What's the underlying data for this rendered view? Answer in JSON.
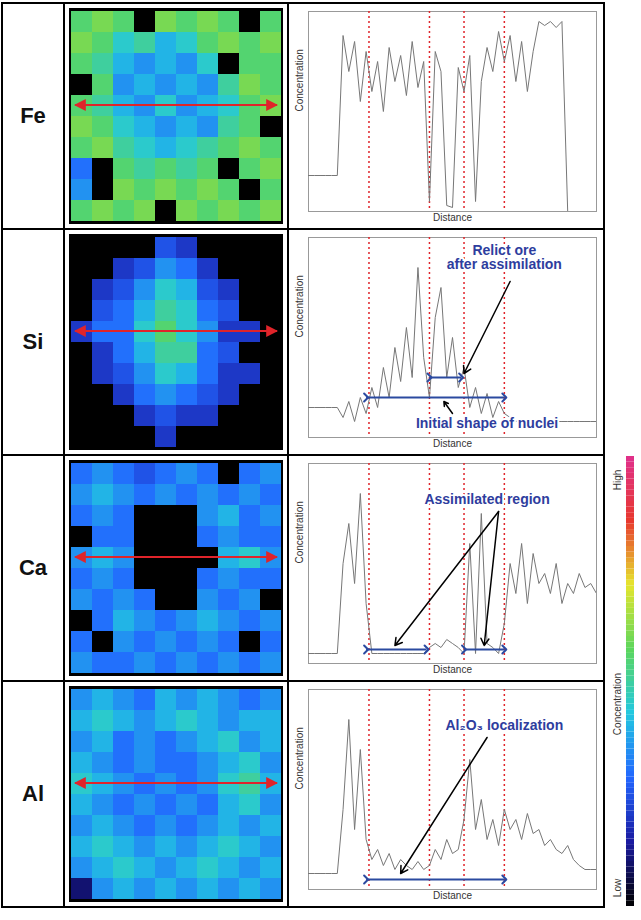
{
  "chart_data": [
    {
      "type": "line",
      "title": "Fe",
      "x_label": "Distance",
      "y_label": "Concentration",
      "xlim": [
        0,
        100
      ],
      "ylim": [
        0,
        100
      ],
      "tick_labels": false,
      "x": [
        0,
        2,
        4,
        6,
        8,
        10,
        12,
        14,
        16,
        18,
        20,
        22,
        24,
        26,
        28,
        30,
        32,
        34,
        36,
        38,
        40,
        42,
        44,
        46,
        48,
        50,
        52,
        54,
        56,
        58,
        60,
        62,
        64,
        66,
        68,
        70,
        72,
        74,
        76,
        78,
        80,
        82,
        84,
        86,
        88,
        90,
        92,
        94,
        96,
        98,
        100
      ],
      "series": [
        {
          "color": "#777777",
          "values": [
            18,
            18,
            18,
            18,
            18,
            18,
            88,
            70,
            85,
            55,
            80,
            60,
            75,
            50,
            82,
            65,
            78,
            58,
            85,
            62,
            75,
            5,
            80,
            70,
            3,
            2,
            72,
            60,
            78,
            5,
            65,
            82,
            70,
            90,
            75,
            88,
            65,
            85,
            60,
            80,
            95,
            93,
            95,
            92,
            95,
            0,
            0,
            0,
            0,
            0,
            0
          ]
        }
      ],
      "reference_lines": {
        "x": [
          21,
          42,
          54,
          68
        ],
        "color": "#e0242a",
        "line_style": "dotted"
      },
      "map": {
        "cells": [
          [
            0.55,
            0.6,
            0.55,
            0.0,
            0.6,
            0.55,
            0.6,
            0.55,
            0.0,
            0.55
          ],
          [
            0.6,
            0.55,
            0.45,
            0.5,
            0.4,
            0.45,
            0.55,
            0.6,
            0.55,
            0.6
          ],
          [
            0.55,
            0.5,
            0.4,
            0.35,
            0.4,
            0.35,
            0.45,
            0.0,
            0.55,
            0.55
          ],
          [
            0.0,
            0.55,
            0.35,
            0.4,
            0.35,
            0.4,
            0.35,
            0.5,
            0.6,
            0.55
          ],
          [
            0.55,
            0.5,
            0.4,
            0.35,
            0.45,
            0.35,
            0.4,
            0.45,
            0.55,
            0.6
          ],
          [
            0.6,
            0.55,
            0.45,
            0.4,
            0.35,
            0.4,
            0.35,
            0.5,
            0.55,
            0.0
          ],
          [
            0.55,
            0.6,
            0.5,
            0.45,
            0.4,
            0.45,
            0.5,
            0.55,
            0.6,
            0.55
          ],
          [
            0.3,
            0.0,
            0.55,
            0.5,
            0.55,
            0.5,
            0.55,
            0.0,
            0.55,
            0.6
          ],
          [
            0.35,
            0.0,
            0.6,
            0.55,
            0.6,
            0.55,
            0.6,
            0.55,
            0.0,
            0.55
          ],
          [
            0.55,
            0.6,
            0.55,
            0.6,
            0.0,
            0.6,
            0.55,
            0.6,
            0.55,
            0.6
          ]
        ]
      }
    },
    {
      "type": "line",
      "title": "Si",
      "x_label": "Distance",
      "y_label": "Concentration",
      "xlim": [
        0,
        100
      ],
      "ylim": [
        0,
        100
      ],
      "tick_labels": false,
      "x": [
        0,
        2,
        4,
        6,
        8,
        10,
        12,
        14,
        16,
        18,
        20,
        22,
        24,
        26,
        28,
        30,
        32,
        34,
        36,
        38,
        40,
        42,
        44,
        46,
        48,
        50,
        52,
        54,
        56,
        58,
        60,
        62,
        64,
        66,
        68,
        70,
        72,
        74,
        76,
        78,
        80,
        82,
        84,
        86,
        88,
        90,
        92,
        94,
        96,
        98,
        100
      ],
      "series": [
        {
          "color": "#777777",
          "values": [
            15,
            15,
            15,
            15,
            15,
            15,
            10,
            18,
            8,
            20,
            12,
            25,
            15,
            35,
            20,
            45,
            28,
            55,
            30,
            85,
            40,
            20,
            60,
            75,
            30,
            50,
            25,
            35,
            15,
            25,
            12,
            22,
            10,
            18,
            12,
            10,
            8,
            9,
            8,
            9,
            8,
            8,
            9,
            8,
            8,
            8,
            8,
            8,
            8,
            8,
            8
          ]
        }
      ],
      "reference_lines": {
        "x": [
          21,
          42,
          54,
          68
        ],
        "color": "#e0242a",
        "line_style": "dotted"
      },
      "spans": [
        {
          "x1": 42,
          "x2": 53,
          "y": 30,
          "color": "#2b4aa0"
        },
        {
          "x1": 20,
          "x2": 68,
          "y": 20,
          "color": "#2b4aa0"
        }
      ],
      "annotations": [
        {
          "text": "Relict ore\nafter assimilation",
          "x": 68,
          "y": 90,
          "color": "#2e3d9e",
          "arrow_from": [
            70,
            78
          ],
          "arrow_to": [
            [
              54,
              32
            ]
          ]
        },
        {
          "text": "Initial shape of nuclei",
          "x": 62,
          "y": 7,
          "color": "#2e3d9e",
          "arrow_from": [
            50,
            12
          ],
          "arrow_to": [
            [
              47,
              18
            ]
          ]
        }
      ],
      "map": {
        "cells": [
          [
            0,
            0,
            0,
            0,
            0.25,
            0.2,
            0,
            0,
            0,
            0
          ],
          [
            0,
            0,
            0.2,
            0.25,
            0.35,
            0.3,
            0.2,
            0,
            0,
            0
          ],
          [
            0,
            0.2,
            0.25,
            0.35,
            0.45,
            0.4,
            0.25,
            0.2,
            0,
            0
          ],
          [
            0,
            0.25,
            0.3,
            0.4,
            0.5,
            0.45,
            0.3,
            0.25,
            0,
            0
          ],
          [
            0.2,
            0.3,
            0.3,
            0.45,
            0.55,
            0.45,
            0.35,
            0.2,
            0.2,
            0
          ],
          [
            0,
            0.2,
            0.3,
            0.4,
            0.5,
            0.5,
            0.3,
            0.25,
            0,
            0
          ],
          [
            0,
            0.2,
            0.25,
            0.35,
            0.45,
            0.4,
            0.3,
            0.2,
            0.2,
            0
          ],
          [
            0,
            0,
            0.2,
            0.3,
            0.35,
            0.3,
            0.25,
            0.2,
            0,
            0
          ],
          [
            0,
            0,
            0,
            0.2,
            0.25,
            0.2,
            0.2,
            0,
            0,
            0
          ],
          [
            0,
            0,
            0,
            0,
            0.2,
            0,
            0,
            0,
            0,
            0
          ]
        ]
      }
    },
    {
      "type": "line",
      "title": "Ca",
      "x_label": "Distance",
      "y_label": "Concentration",
      "xlim": [
        0,
        100
      ],
      "ylim": [
        0,
        100
      ],
      "tick_labels": false,
      "x": [
        0,
        2,
        4,
        6,
        8,
        10,
        12,
        14,
        16,
        18,
        20,
        22,
        24,
        26,
        28,
        30,
        32,
        34,
        36,
        38,
        40,
        42,
        44,
        46,
        48,
        50,
        52,
        54,
        56,
        58,
        60,
        62,
        64,
        66,
        68,
        70,
        72,
        74,
        76,
        78,
        80,
        82,
        84,
        86,
        88,
        90,
        92,
        94,
        96,
        98,
        100
      ],
      "series": [
        {
          "color": "#777777",
          "values": [
            5,
            5,
            5,
            5,
            5,
            5,
            50,
            70,
            40,
            85,
            30,
            5,
            5,
            5,
            5,
            5,
            5,
            5,
            5,
            5,
            5,
            8,
            10,
            8,
            12,
            10,
            8,
            5,
            60,
            5,
            75,
            10,
            8,
            5,
            20,
            50,
            35,
            60,
            30,
            55,
            40,
            45,
            35,
            50,
            30,
            40,
            35,
            45,
            38,
            40,
            35
          ]
        }
      ],
      "reference_lines": {
        "x": [
          21,
          42,
          54,
          68
        ],
        "color": "#e0242a",
        "line_style": "dotted"
      },
      "spans": [
        {
          "x1": 20,
          "x2": 41,
          "y": 7,
          "color": "#2b4aa0"
        },
        {
          "x1": 54,
          "x2": 68,
          "y": 7,
          "color": "#2b4aa0"
        }
      ],
      "annotations": [
        {
          "text": "Assimilated region",
          "x": 62,
          "y": 82,
          "color": "#2e3d9e",
          "arrow_from": [
            66,
            76
          ],
          "arrow_to": [
            [
              30,
              9
            ],
            [
              61,
              9
            ]
          ]
        }
      ],
      "map": {
        "cells": [
          [
            0.3,
            0.35,
            0.3,
            0.25,
            0.3,
            0.35,
            0.3,
            0.0,
            0.3,
            0.35
          ],
          [
            0.35,
            0.4,
            0.35,
            0.3,
            0.35,
            0.3,
            0.35,
            0.3,
            0.35,
            0.3
          ],
          [
            0.3,
            0.35,
            0.3,
            0.0,
            0.0,
            0.0,
            0.35,
            0.4,
            0.3,
            0.35
          ],
          [
            0.0,
            0.3,
            0.3,
            0.0,
            0.0,
            0.0,
            0.3,
            0.35,
            0.3,
            0.3
          ],
          [
            0.35,
            0.4,
            0.35,
            0.0,
            0.0,
            0.0,
            0.0,
            0.4,
            0.45,
            0.35
          ],
          [
            0.3,
            0.35,
            0.3,
            0.0,
            0.0,
            0.0,
            0.3,
            0.35,
            0.3,
            0.3
          ],
          [
            0.35,
            0.3,
            0.35,
            0.3,
            0.0,
            0.0,
            0.35,
            0.3,
            0.35,
            0.0
          ],
          [
            0.0,
            0.3,
            0.4,
            0.35,
            0.3,
            0.35,
            0.4,
            0.35,
            0.3,
            0.35
          ],
          [
            0.3,
            0.0,
            0.35,
            0.3,
            0.35,
            0.3,
            0.35,
            0.3,
            0.0,
            0.3
          ],
          [
            0.35,
            0.3,
            0.3,
            0.35,
            0.3,
            0.35,
            0.3,
            0.35,
            0.3,
            0.35
          ]
        ]
      }
    },
    {
      "type": "line",
      "title": "Al",
      "x_label": "Distance",
      "y_label": "Concentration",
      "xlim": [
        0,
        100
      ],
      "ylim": [
        0,
        100
      ],
      "tick_labels": false,
      "x": [
        0,
        2,
        4,
        6,
        8,
        10,
        12,
        14,
        16,
        18,
        20,
        22,
        24,
        26,
        28,
        30,
        32,
        34,
        36,
        38,
        40,
        42,
        44,
        46,
        48,
        50,
        52,
        54,
        56,
        58,
        60,
        62,
        64,
        66,
        68,
        70,
        72,
        74,
        76,
        78,
        80,
        82,
        84,
        86,
        88,
        90,
        92,
        94,
        96,
        98,
        100
      ],
      "series": [
        {
          "color": "#777777",
          "values": [
            8,
            8,
            8,
            8,
            8,
            8,
            40,
            85,
            30,
            70,
            25,
            15,
            20,
            12,
            18,
            10,
            15,
            12,
            10,
            14,
            10,
            12,
            20,
            15,
            25,
            18,
            20,
            35,
            65,
            30,
            45,
            25,
            35,
            22,
            40,
            30,
            35,
            25,
            38,
            28,
            30,
            22,
            25,
            20,
            18,
            22,
            15,
            12,
            10,
            10,
            10
          ]
        }
      ],
      "reference_lines": {
        "x": [
          21,
          42,
          54,
          68
        ],
        "color": "#e0242a",
        "line_style": "dotted"
      },
      "spans": [
        {
          "x1": 20,
          "x2": 68,
          "y": 5,
          "color": "#2b4aa0"
        }
      ],
      "annotations": [
        {
          "text": "Al₂O₃ localization",
          "x": 68,
          "y": 82,
          "color": "#2e3d9e",
          "arrow_from": [
            62,
            76
          ],
          "arrow_to": [
            [
              32,
              8
            ]
          ]
        }
      ],
      "map": {
        "cells": [
          [
            0.35,
            0.4,
            0.35,
            0.3,
            0.4,
            0.35,
            0.4,
            0.35,
            0.3,
            0.35
          ],
          [
            0.4,
            0.45,
            0.4,
            0.35,
            0.4,
            0.45,
            0.4,
            0.35,
            0.4,
            0.4
          ],
          [
            0.35,
            0.4,
            0.3,
            0.35,
            0.3,
            0.35,
            0.4,
            0.45,
            0.35,
            0.4
          ],
          [
            0.4,
            0.35,
            0.3,
            0.35,
            0.3,
            0.3,
            0.35,
            0.4,
            0.45,
            0.35
          ],
          [
            0.45,
            0.4,
            0.35,
            0.3,
            0.35,
            0.3,
            0.35,
            0.45,
            0.5,
            0.4
          ],
          [
            0.4,
            0.35,
            0.3,
            0.35,
            0.3,
            0.35,
            0.3,
            0.4,
            0.45,
            0.35
          ],
          [
            0.35,
            0.4,
            0.35,
            0.3,
            0.35,
            0.3,
            0.35,
            0.4,
            0.35,
            0.4
          ],
          [
            0.4,
            0.45,
            0.4,
            0.35,
            0.4,
            0.35,
            0.4,
            0.45,
            0.4,
            0.35
          ],
          [
            0.35,
            0.4,
            0.45,
            0.4,
            0.35,
            0.4,
            0.45,
            0.4,
            0.35,
            0.4
          ],
          [
            0.1,
            0.35,
            0.4,
            0.35,
            0.4,
            0.35,
            0.4,
            0.35,
            0.4,
            0.35
          ]
        ]
      }
    }
  ],
  "colorbar": {
    "title": "Concentration",
    "high_label": "High",
    "low_label": "Low",
    "range": [
      0,
      1
    ],
    "colors": [
      "#000000",
      "#1a1aa0",
      "#2266ff",
      "#22c8e0",
      "#5cd65c",
      "#e6e62e",
      "#e8382e",
      "#e0308c"
    ]
  }
}
